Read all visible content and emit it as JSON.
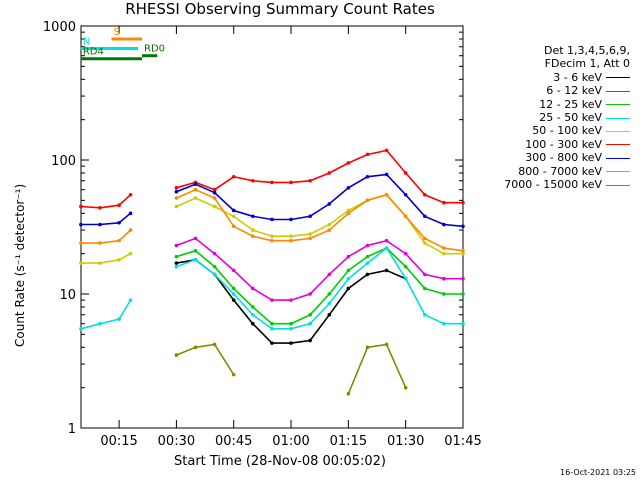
{
  "chart_data": {
    "type": "line",
    "title": "RHESSI Observing Summary Count Rates",
    "xlabel": "Start Time (28-Nov-08 00:05:02)",
    "ylabel": "Count Rate (s⁻¹ detector⁻¹)",
    "yscale": "log",
    "ylim": [
      1,
      1000
    ],
    "xlim": [
      "00:05",
      "01:45"
    ],
    "x_ticks": [
      "00:15",
      "00:30",
      "00:45",
      "01:00",
      "01:15",
      "01:30",
      "01:45"
    ],
    "y_ticks": [
      "1",
      "10",
      "100",
      "1000"
    ],
    "legend": {
      "header": [
        "Det 1,3,4,5,6,9,",
        "FDecim 1, Att 0"
      ],
      "position": "top-right outside"
    },
    "timestamp": "16-Oct-2021 03:25",
    "x": [
      "00:05",
      "00:10",
      "00:15",
      "00:18",
      "00:20",
      "00:25",
      "00:30",
      "00:35",
      "00:40",
      "00:45",
      "00:50",
      "00:55",
      "01:00",
      "01:05",
      "01:10",
      "01:15",
      "01:20",
      "01:25",
      "01:30",
      "01:35",
      "01:40",
      "01:45"
    ],
    "series": [
      {
        "name": "3 - 6 keV",
        "color": "#000000",
        "values": [
          null,
          null,
          null,
          null,
          null,
          null,
          17,
          18,
          14,
          9,
          6,
          4.3,
          4.3,
          4.5,
          7,
          11,
          14,
          15,
          13,
          null,
          null,
          null
        ]
      },
      {
        "name": "6 - 12 keV",
        "color": "#e000e0",
        "values": [
          null,
          null,
          null,
          null,
          null,
          null,
          23,
          26,
          20,
          15,
          11,
          9,
          9,
          10,
          14,
          19,
          23,
          25,
          20,
          14,
          13,
          13
        ]
      },
      {
        "name": "12 - 25 keV",
        "color": "#00cc00",
        "values": [
          null,
          null,
          null,
          null,
          null,
          null,
          19,
          21,
          16,
          11,
          8,
          6,
          6,
          7,
          10,
          15,
          19,
          22,
          16,
          11,
          10,
          10
        ]
      },
      {
        "name": "25 - 50 keV",
        "color": "#00e0e0",
        "values": [
          5.5,
          6,
          6.5,
          9,
          null,
          null,
          16,
          18,
          14,
          10,
          7,
          5.5,
          5.5,
          6,
          8.5,
          13,
          17,
          22,
          13,
          7,
          6,
          6
        ]
      },
      {
        "name": "50 - 100 keV",
        "color": "#cccc00",
        "values": [
          17,
          17,
          18,
          20,
          null,
          null,
          45,
          52,
          45,
          38,
          30,
          27,
          27,
          28,
          33,
          42,
          50,
          55,
          38,
          24,
          20,
          20
        ]
      },
      {
        "name": "100 - 300 keV",
        "color": "#ff0000",
        "values": [
          45,
          44,
          46,
          55,
          null,
          null,
          62,
          68,
          60,
          75,
          70,
          68,
          68,
          70,
          80,
          95,
          110,
          118,
          80,
          55,
          48,
          48
        ]
      },
      {
        "name": "300 - 800 keV",
        "color": "#0000cc",
        "values": [
          33,
          33,
          34,
          40,
          null,
          null,
          58,
          66,
          57,
          42,
          38,
          36,
          36,
          38,
          47,
          62,
          75,
          78,
          55,
          38,
          33,
          32
        ]
      },
      {
        "name": "800 - 7000 keV",
        "color": "#ff8800",
        "values": [
          24,
          24,
          25,
          30,
          null,
          null,
          52,
          60,
          52,
          32,
          27,
          25,
          25,
          26,
          30,
          40,
          50,
          55,
          38,
          26,
          22,
          21
        ]
      },
      {
        "name": "7000 - 15000 keV",
        "color": "#888800",
        "values": [
          null,
          null,
          null,
          null,
          null,
          null,
          3.5,
          4,
          4.2,
          2.5,
          null,
          null,
          null,
          null,
          null,
          1.8,
          4,
          4.2,
          2,
          null,
          null,
          null
        ]
      }
    ],
    "flags": [
      {
        "label": "S",
        "color": "#ff8800",
        "start": "00:13",
        "end": "00:21",
        "value": 800
      },
      {
        "label": "N",
        "color": "#00e0e0",
        "start": "00:05",
        "end": "00:20",
        "value": 680
      },
      {
        "label": "RD0",
        "color": "#007700",
        "start": "00:21",
        "end": "00:25",
        "value": 600
      },
      {
        "label": "RD4",
        "color": "#007700",
        "start": "00:05",
        "end": "00:21",
        "value": 570
      }
    ]
  }
}
